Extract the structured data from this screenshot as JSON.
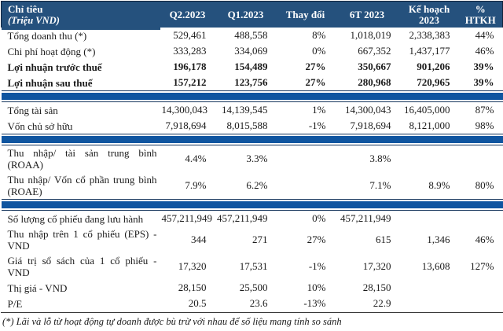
{
  "colors": {
    "header_bg": "#25517D",
    "separator_bar": "#0F55A0",
    "border_dark": "#17365D",
    "text": "#1B1B1B"
  },
  "table": {
    "header": {
      "title": "Chỉ tiêu",
      "subtitle": "(Triệu VND)",
      "columns": [
        {
          "line1": "Q2.2023",
          "line2": ""
        },
        {
          "line1": "Q1.2023",
          "line2": ""
        },
        {
          "line1": "Thay đổi",
          "line2": ""
        },
        {
          "line1": "6T 2023",
          "line2": ""
        },
        {
          "line1": "Kế hoạch",
          "line2": "2023"
        },
        {
          "line1": "%",
          "line2": "HTKH"
        }
      ]
    },
    "rows": [
      {
        "type": "data",
        "bold": false,
        "label": "Tổng doanh thu (*)",
        "values": [
          "529,461",
          "488,558",
          "8%",
          "1,018,019",
          "2,338,383",
          "44%"
        ]
      },
      {
        "type": "data",
        "bold": false,
        "label": "Chi phí hoạt động (*)",
        "values": [
          "333,283",
          "334,069",
          "0%",
          "667,352",
          "1,437,177",
          "46%"
        ]
      },
      {
        "type": "data",
        "bold": true,
        "label": "Lợi nhuận trước thuế",
        "values": [
          "196,178",
          "154,489",
          "27%",
          "350,667",
          "901,206",
          "39%"
        ]
      },
      {
        "type": "data",
        "bold": true,
        "label": "Lợi nhuận sau thuế",
        "values": [
          "157,212",
          "123,756",
          "27%",
          "280,968",
          "720,965",
          "39%"
        ]
      },
      {
        "type": "bar"
      },
      {
        "type": "data",
        "bold": false,
        "label": "Tổng tài sản",
        "values": [
          "14,300,043",
          "14,139,545",
          "1%",
          "14,300,043",
          "16,405,000",
          "87%"
        ]
      },
      {
        "type": "data",
        "bold": false,
        "label": "Vốn chủ sở hữu",
        "values": [
          "7,918,694",
          "8,015,588",
          "-1%",
          "7,918,694",
          "8,121,000",
          "98%"
        ]
      },
      {
        "type": "bar"
      },
      {
        "type": "data",
        "bold": false,
        "label": "Thu nhập/ tài sản trung bình (ROAA)",
        "values": [
          "4.4%",
          "3.3%",
          "",
          "3.8%",
          "",
          ""
        ]
      },
      {
        "type": "data",
        "bold": false,
        "label": "Thu nhập/ Vốn cổ phần trung bình (ROAE)",
        "values": [
          "7.9%",
          "6.2%",
          "",
          "7.1%",
          "8.9%",
          "80%"
        ]
      },
      {
        "type": "bar"
      },
      {
        "type": "data",
        "bold": false,
        "label": "Số lượng cổ phiếu đang lưu hành",
        "values": [
          "457,211,949",
          "457,211,949",
          "0%",
          "457,211,949",
          "",
          ""
        ]
      },
      {
        "type": "data",
        "bold": false,
        "label": "Thu nhập trên 1 cổ phiếu (EPS) - VND",
        "values": [
          "344",
          "271",
          "27%",
          "615",
          "1,346",
          "46%"
        ]
      },
      {
        "type": "data",
        "bold": false,
        "label": "Giá trị sổ sách của 1 cổ phiếu - VND",
        "values": [
          "17,320",
          "17,531",
          "-1%",
          "17,320",
          "13,608",
          "127%"
        ]
      },
      {
        "type": "data",
        "bold": false,
        "label": "Thị giá - VND",
        "values": [
          "28,150",
          "25,500",
          "10%",
          "28,150",
          "",
          ""
        ]
      },
      {
        "type": "data",
        "bold": false,
        "label": "P/E",
        "values": [
          "20.5",
          "23.6",
          "-13%",
          "22.9",
          "",
          ""
        ]
      }
    ],
    "footnote": "(*) Lãi và lỗ từ hoạt động tự doanh được bù trừ với nhau để số liệu mang tính so sánh"
  }
}
